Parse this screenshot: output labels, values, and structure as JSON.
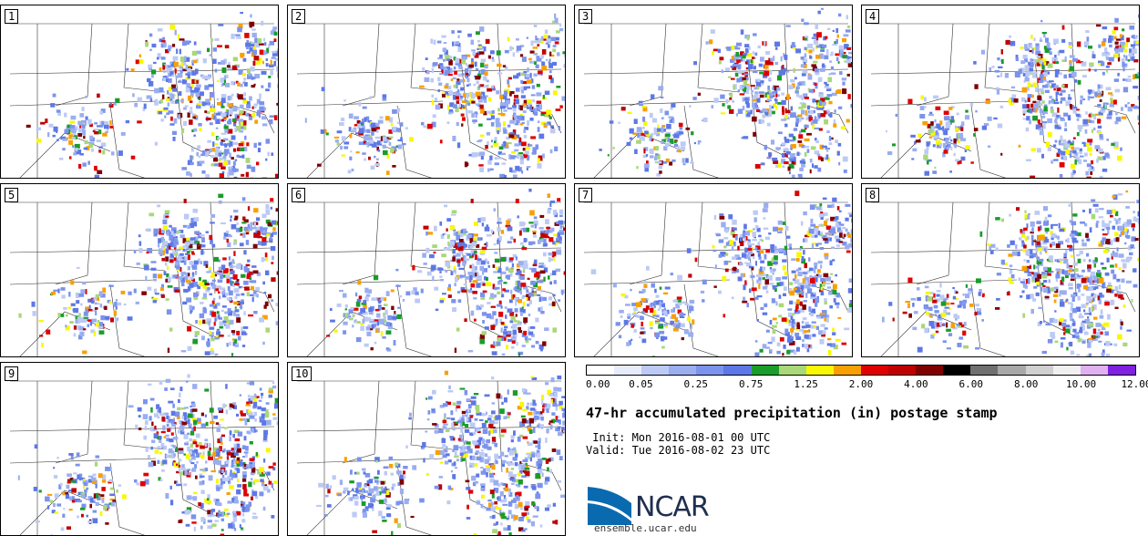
{
  "panels": [
    {
      "label": "1"
    },
    {
      "label": "2"
    },
    {
      "label": "3"
    },
    {
      "label": "4"
    },
    {
      "label": "5"
    },
    {
      "label": "6"
    },
    {
      "label": "7"
    },
    {
      "label": "8"
    },
    {
      "label": "9"
    },
    {
      "label": "10"
    }
  ],
  "colorbar": {
    "colors": [
      "#ffffff",
      "#e6ecfa",
      "#bccaf5",
      "#9aaef0",
      "#7b93ec",
      "#5d78e6",
      "#1a9c2a",
      "#a8d878",
      "#f8f800",
      "#f8a000",
      "#e00000",
      "#c00000",
      "#800000",
      "#000000",
      "#707070",
      "#a8a8a8",
      "#d0d0d0",
      "#f0f0f0",
      "#e0b0f0",
      "#8020e0"
    ],
    "tick_labels": [
      "0.00",
      "0.05",
      "0.25",
      "0.75",
      "1.25",
      "2.00",
      "4.00",
      "6.00",
      "8.00",
      "10.00",
      "12.00"
    ]
  },
  "title": "47-hr accumulated precipitation (in) postage stamp",
  "init": " Init: Mon 2016-08-01 00 UTC",
  "valid": "Valid: Tue 2016-08-02 23 UTC",
  "logo": {
    "text": "NCAR",
    "url": "ensemble.ucar.edu",
    "blue": "#0a6ab0"
  }
}
